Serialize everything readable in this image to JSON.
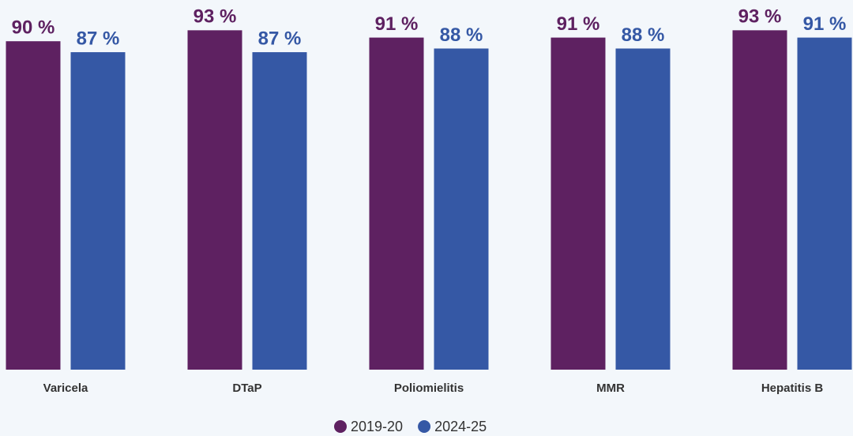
{
  "chart_data": {
    "type": "bar",
    "categories": [
      "Varicela",
      "DTaP",
      "Poliomielitis",
      "MMR",
      "Hepatitis B"
    ],
    "series": [
      {
        "name": "2019-20",
        "color": "#5e2161",
        "values": [
          90,
          93,
          91,
          91,
          93
        ],
        "value_labels": [
          "90 %",
          "93 %",
          "91 %",
          "91 %",
          "93 %"
        ]
      },
      {
        "name": "2024-25",
        "color": "#3558a5",
        "values": [
          87,
          87,
          88,
          88,
          91
        ],
        "value_labels": [
          "87 %",
          "87 %",
          "88 %",
          "88 %",
          "91 %"
        ]
      }
    ],
    "ylim": [
      0,
      100
    ]
  }
}
